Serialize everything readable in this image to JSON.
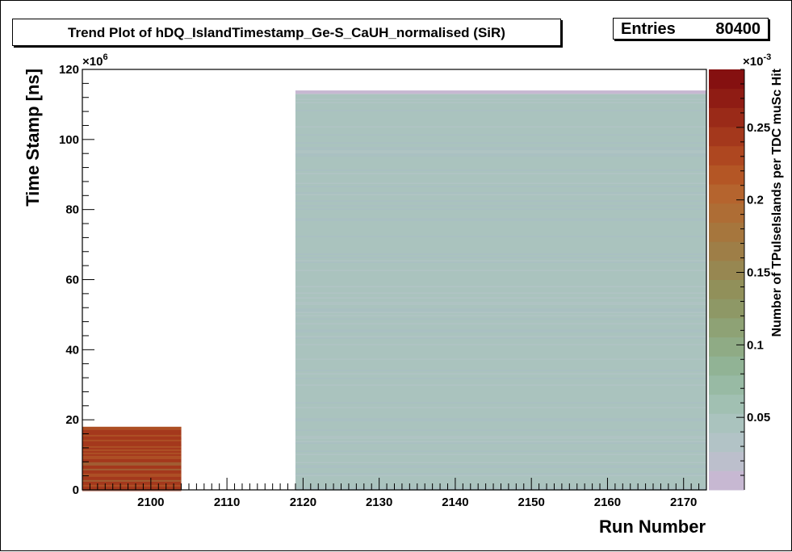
{
  "chart_data": {
    "type": "heatmap",
    "title": "Trend Plot of hDQ_IslandTimestamp_Ge-S_CaUH_normalised (SiR)",
    "stats": {
      "label": "Entries",
      "value": "80400"
    },
    "xlabel": "Run Number",
    "ylabel": "Time Stamp [ns]",
    "zlabel": "Number of TPulseIslands per TDC muSc Hit",
    "xlim": [
      2091,
      2173
    ],
    "ylim": [
      0,
      120
    ],
    "y_multiplier": "×10^6",
    "z_multiplier": "×10^-3",
    "zlim": [
      0,
      0.29
    ],
    "x_ticks": [
      2100,
      2110,
      2120,
      2130,
      2140,
      2150,
      2160,
      2170
    ],
    "y_ticks": [
      0,
      20,
      40,
      60,
      80,
      100,
      120
    ],
    "z_ticks": [
      "0.05",
      "0.1",
      "0.15",
      "0.2",
      "0.25"
    ],
    "z_tick_values": [
      0.05,
      0.1,
      0.15,
      0.2,
      0.25
    ],
    "filled_regions": [
      {
        "runs": [
          2091,
          2104
        ],
        "time": [
          0,
          18
        ],
        "level": 0.25
      },
      {
        "runs": [
          2119,
          2173
        ],
        "time": [
          0,
          113
        ],
        "level": 0.04
      },
      {
        "runs": [
          2119,
          2173
        ],
        "time": [
          113,
          114
        ],
        "level": 0.01
      }
    ],
    "palette": [
      "#c7b8d2",
      "#bcbfcc",
      "#b2c3c6",
      "#aac3be",
      "#a1c0b2",
      "#98baa4",
      "#91b395",
      "#8fab85",
      "#8ea275",
      "#8e9866",
      "#91905a",
      "#978751",
      "#9e7e47",
      "#a6763d",
      "#ae6d35",
      "#b5642e",
      "#b45625",
      "#ae4720",
      "#a4381c",
      "#9a2a18",
      "#8f1c14",
      "#851010"
    ],
    "grid": false,
    "legend": "colorbar-right"
  }
}
